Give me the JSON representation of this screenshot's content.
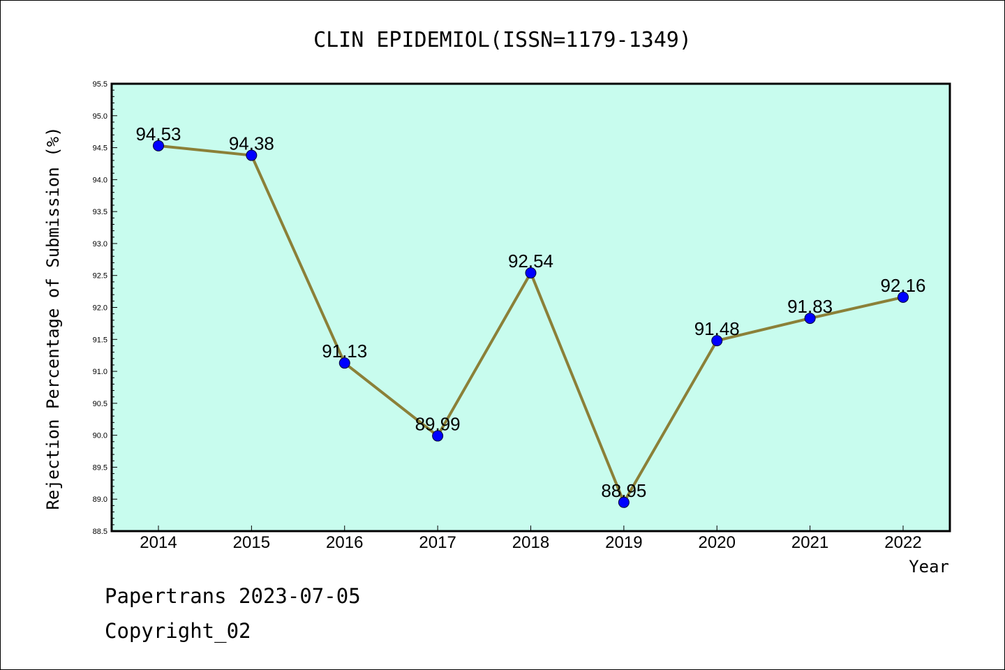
{
  "footer": {
    "line1": "Papertrans 2023-07-05",
    "line2": "Copyright_02"
  },
  "chart_data": {
    "type": "line",
    "title": "CLIN EPIDEMIOL(ISSN=1179-1349)",
    "xlabel": "Year",
    "ylabel": "Rejection Percentage of Submission (%)",
    "categories": [
      "2014",
      "2015",
      "2016",
      "2017",
      "2018",
      "2019",
      "2020",
      "2021",
      "2022"
    ],
    "values": [
      94.53,
      94.38,
      91.13,
      89.99,
      92.54,
      88.95,
      91.48,
      91.83,
      92.16
    ],
    "data_labels": [
      "94.53",
      "94.38",
      "91.13",
      "89.99",
      "92.54",
      "88.95",
      "91.48",
      "91.83",
      "92.16"
    ],
    "ylim": [
      88.5,
      95.5
    ],
    "yticks": [
      "88.5",
      "89.0",
      "89.5",
      "90.0",
      "90.5",
      "91.0",
      "91.5",
      "92.0",
      "92.5",
      "93.0",
      "93.5",
      "94.0",
      "94.5",
      "95.0",
      "95.5"
    ],
    "grid": false,
    "colors": {
      "plot_background": "#c8fcee",
      "line": "#8b8038",
      "marker": "#0000ff"
    }
  }
}
